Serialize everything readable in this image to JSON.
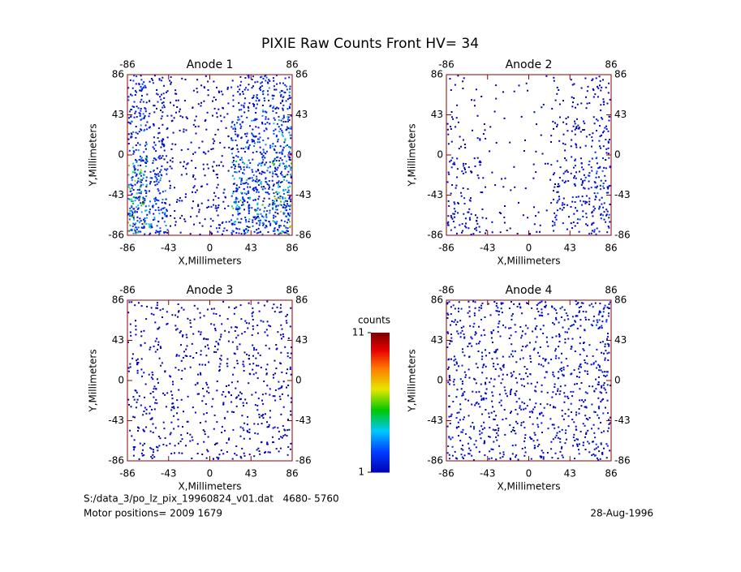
{
  "chart_data": {
    "type": "heatmap",
    "title": "PIXIE Raw Counts Front HV= 34",
    "panels": [
      {
        "title": "Anode 1",
        "xlabel": "X,Millimeters",
        "ylabel": "Y,Millimeters",
        "xlim": [
          -86,
          86
        ],
        "ylim": [
          -86,
          86
        ],
        "xticks": [
          -86,
          -43,
          0,
          43,
          86
        ],
        "yticks": [
          -86,
          -43,
          0,
          43,
          86
        ],
        "x2ticks": [
          -86,
          86
        ],
        "grid": [
          [
            3,
            2,
            1,
            1,
            1,
            2,
            3,
            3
          ],
          [
            3,
            2,
            1,
            1,
            1,
            3,
            3,
            4
          ],
          [
            5,
            3,
            1,
            1,
            1,
            4,
            4,
            5
          ],
          [
            6,
            4,
            1,
            1,
            2,
            5,
            4,
            6
          ]
        ]
      },
      {
        "title": "Anode 2",
        "xlabel": "X,Millimeters",
        "ylabel": "Y,Millimeters",
        "xlim": [
          -86,
          86
        ],
        "ylim": [
          -86,
          86
        ],
        "xticks": [
          -86,
          -43,
          0,
          43,
          86
        ],
        "yticks": [
          -86,
          -43,
          0,
          43,
          86
        ],
        "x2ticks": [
          -86,
          86
        ],
        "grid": [
          [
            0.5,
            0.3,
            0.2,
            0.2,
            0.2,
            0.5,
            1,
            1.5
          ],
          [
            1,
            0.5,
            0.2,
            0.2,
            0.2,
            1,
            1.5,
            2
          ],
          [
            1.5,
            1,
            0.3,
            0.2,
            0.3,
            1.5,
            2,
            2.5
          ],
          [
            2,
            1.5,
            0.5,
            0.3,
            0.5,
            1.5,
            2,
            2.5
          ]
        ]
      },
      {
        "title": "Anode 3",
        "xlabel": "X,Millimeters",
        "ylabel": "Y,Millimeters",
        "xlim": [
          -86,
          86
        ],
        "ylim": [
          -86,
          86
        ],
        "xticks": [
          -86,
          -43,
          0,
          43,
          86
        ],
        "yticks": [
          -86,
          -43,
          0,
          43,
          86
        ],
        "x2ticks": [
          -86,
          86
        ],
        "grid": [
          [
            1,
            1,
            1,
            1,
            1,
            1,
            1.2,
            1.2
          ],
          [
            1.2,
            1.2,
            1,
            1,
            1,
            1.2,
            1.2,
            1.3
          ],
          [
            1.2,
            1.2,
            1.1,
            1,
            1,
            1.2,
            1.3,
            1.3
          ],
          [
            1.3,
            1.3,
            1.1,
            1,
            1.1,
            1.3,
            1.3,
            1.4
          ]
        ]
      },
      {
        "title": "Anode 4",
        "xlabel": "X,Millimeters",
        "ylabel": "Y,Millimeters",
        "xlim": [
          -86,
          86
        ],
        "ylim": [
          -86,
          86
        ],
        "xticks": [
          -86,
          -43,
          0,
          43,
          86
        ],
        "yticks": [
          -86,
          -43,
          0,
          43,
          86
        ],
        "x2ticks": [
          -86,
          86
        ],
        "grid": [
          [
            2,
            1.6,
            1.5,
            1.5,
            1.5,
            1.6,
            1.8,
            2.2
          ],
          [
            1.6,
            1.5,
            1.4,
            1.4,
            1.4,
            1.5,
            1.6,
            2
          ],
          [
            1.6,
            1.5,
            1.4,
            1.4,
            1.4,
            1.5,
            1.6,
            2
          ],
          [
            1.8,
            1.6,
            1.5,
            1.5,
            1.5,
            1.6,
            1.7,
            2
          ]
        ]
      }
    ],
    "colorbar": {
      "label": "counts",
      "lim": [
        1,
        11
      ],
      "ticks": [
        1,
        11
      ]
    },
    "footer": {
      "file": "S:/data_3/po_lz_pix_19960824_v01.dat   4680- 5760",
      "motor": "Motor positions= 2009 1679",
      "date": "28-Aug-1996"
    }
  }
}
